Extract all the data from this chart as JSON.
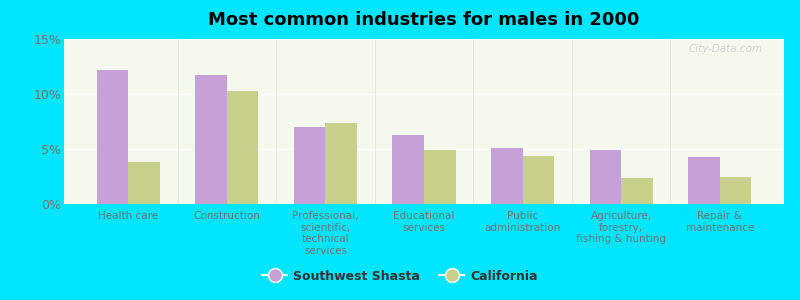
{
  "title": "Most common industries for males in 2000",
  "categories": [
    "Health care",
    "Construction",
    "Professional,\nscientific,\ntechnical\nservices",
    "Educational\nservices",
    "Public\nadministration",
    "Agriculture,\nforestry,\nfishing & hunting",
    "Repair &\nmaintenance"
  ],
  "southwest_shasta": [
    12.2,
    11.7,
    7.0,
    6.3,
    5.1,
    4.9,
    4.3
  ],
  "california": [
    3.8,
    10.3,
    7.4,
    4.9,
    4.4,
    2.4,
    2.5
  ],
  "color_shasta": "#c8a0d8",
  "color_california": "#c8d08c",
  "background_outer": "#00e5ff",
  "background_plot_top": "#e8f0d0",
  "background_plot_bottom": "#f5f8ec",
  "ylim": [
    0,
    15
  ],
  "yticks": [
    0,
    5,
    10,
    15
  ],
  "ytick_labels": [
    "0%",
    "5%",
    "10%",
    "15%"
  ],
  "legend_label_shasta": "Southwest Shasta",
  "legend_label_california": "California",
  "bar_width": 0.32,
  "tick_label_color": "#707070",
  "grid_color": "#ffffff"
}
